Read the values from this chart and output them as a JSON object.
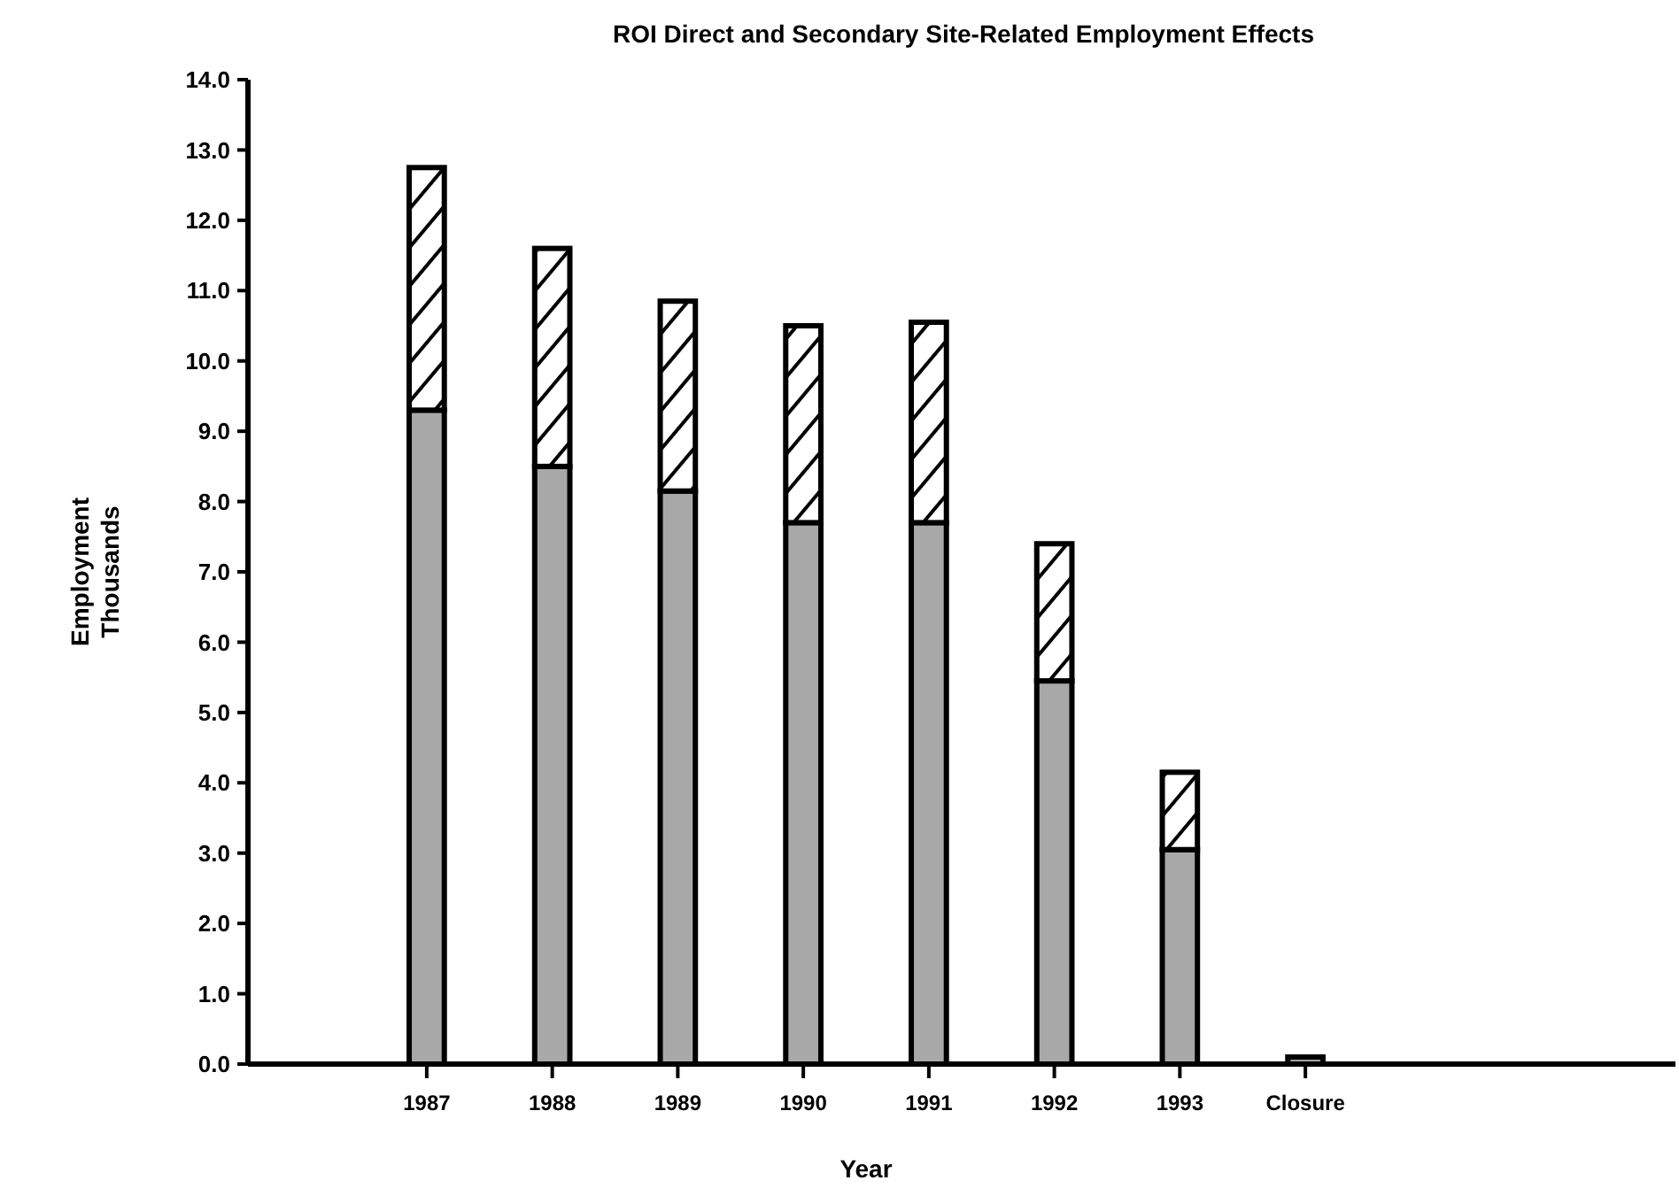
{
  "chart_data": {
    "type": "bar",
    "title": "ROI Direct and Secondary Site-Related Employment Effects",
    "xlabel": "Year",
    "ylabel": "Employment\nThousands",
    "categories": [
      "1987",
      "1988",
      "1989",
      "1990",
      "1991",
      "1992",
      "1993",
      "Closure"
    ],
    "stacked": true,
    "series": [
      {
        "color": "#a8a8a8",
        "values": [
          9.3,
          8.5,
          8.15,
          7.7,
          7.7,
          5.45,
          3.05,
          0.1
        ]
      },
      {
        "color": "#000000",
        "values": [
          3.45,
          3.1,
          2.7,
          2.8,
          2.85,
          1.95,
          1.1,
          0
        ]
      }
    ],
    "ylim": [
      0,
      14
    ],
    "yticks": [
      {
        "value": 0,
        "label": "0.0"
      },
      {
        "value": 1,
        "label": "1.0"
      },
      {
        "value": 2,
        "label": "2.0"
      },
      {
        "value": 3,
        "label": "3.0"
      },
      {
        "value": 4,
        "label": "4.0"
      },
      {
        "value": 5,
        "label": "5.0"
      },
      {
        "value": 6,
        "label": "6.0"
      },
      {
        "value": 7,
        "label": "7.0"
      },
      {
        "value": 8,
        "label": "8.0"
      },
      {
        "value": 9,
        "label": "9.0"
      },
      {
        "value": 10,
        "label": "10.0"
      },
      {
        "value": 11,
        "label": "11.0"
      },
      {
        "value": 12,
        "label": "12.0"
      },
      {
        "value": 13,
        "label": "13.0"
      },
      {
        "value": 14,
        "label": "14.0"
      }
    ],
    "grid": false
  }
}
